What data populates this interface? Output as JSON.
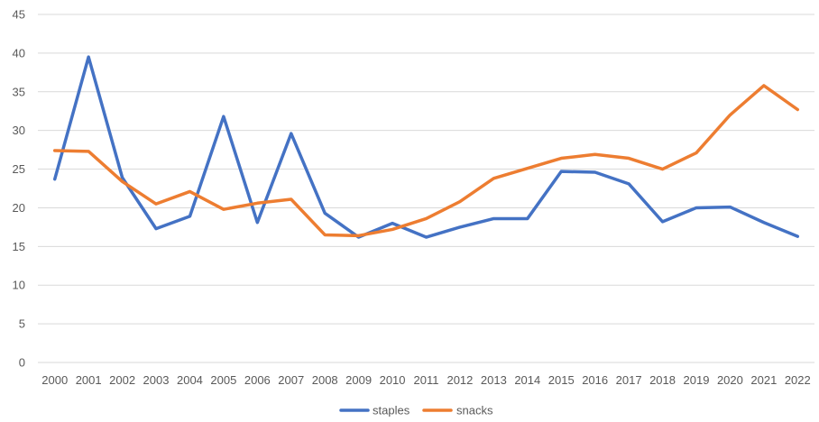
{
  "chart_data": {
    "type": "line",
    "title": "",
    "xlabel": "",
    "ylabel": "",
    "ylim": [
      0,
      45
    ],
    "yticks": [
      0,
      5,
      10,
      15,
      20,
      25,
      30,
      35,
      40,
      45
    ],
    "grid": true,
    "legend": "bottom",
    "categories": [
      "2000",
      "2001",
      "2002",
      "2003",
      "2004",
      "2005",
      "2006",
      "2007",
      "2008",
      "2009",
      "2010",
      "2011",
      "2012",
      "2013",
      "2014",
      "2015",
      "2016",
      "2017",
      "2018",
      "2019",
      "2020",
      "2021",
      "2022"
    ],
    "series": [
      {
        "name": "staples",
        "color": "#4472c4",
        "values": [
          23.7,
          39.5,
          23.9,
          17.3,
          18.9,
          31.8,
          18.1,
          29.6,
          19.3,
          16.2,
          18.0,
          16.2,
          17.5,
          18.6,
          18.6,
          24.7,
          24.6,
          23.1,
          18.2,
          20.0,
          20.1,
          18.1,
          16.3
        ]
      },
      {
        "name": "snacks",
        "color": "#ed7d31",
        "values": [
          27.4,
          27.3,
          23.4,
          20.5,
          22.1,
          19.8,
          20.6,
          21.1,
          16.5,
          16.4,
          17.2,
          18.6,
          20.8,
          23.8,
          25.1,
          26.4,
          26.9,
          26.4,
          25.0,
          27.1,
          32.0,
          35.8,
          32.7
        ]
      }
    ]
  }
}
